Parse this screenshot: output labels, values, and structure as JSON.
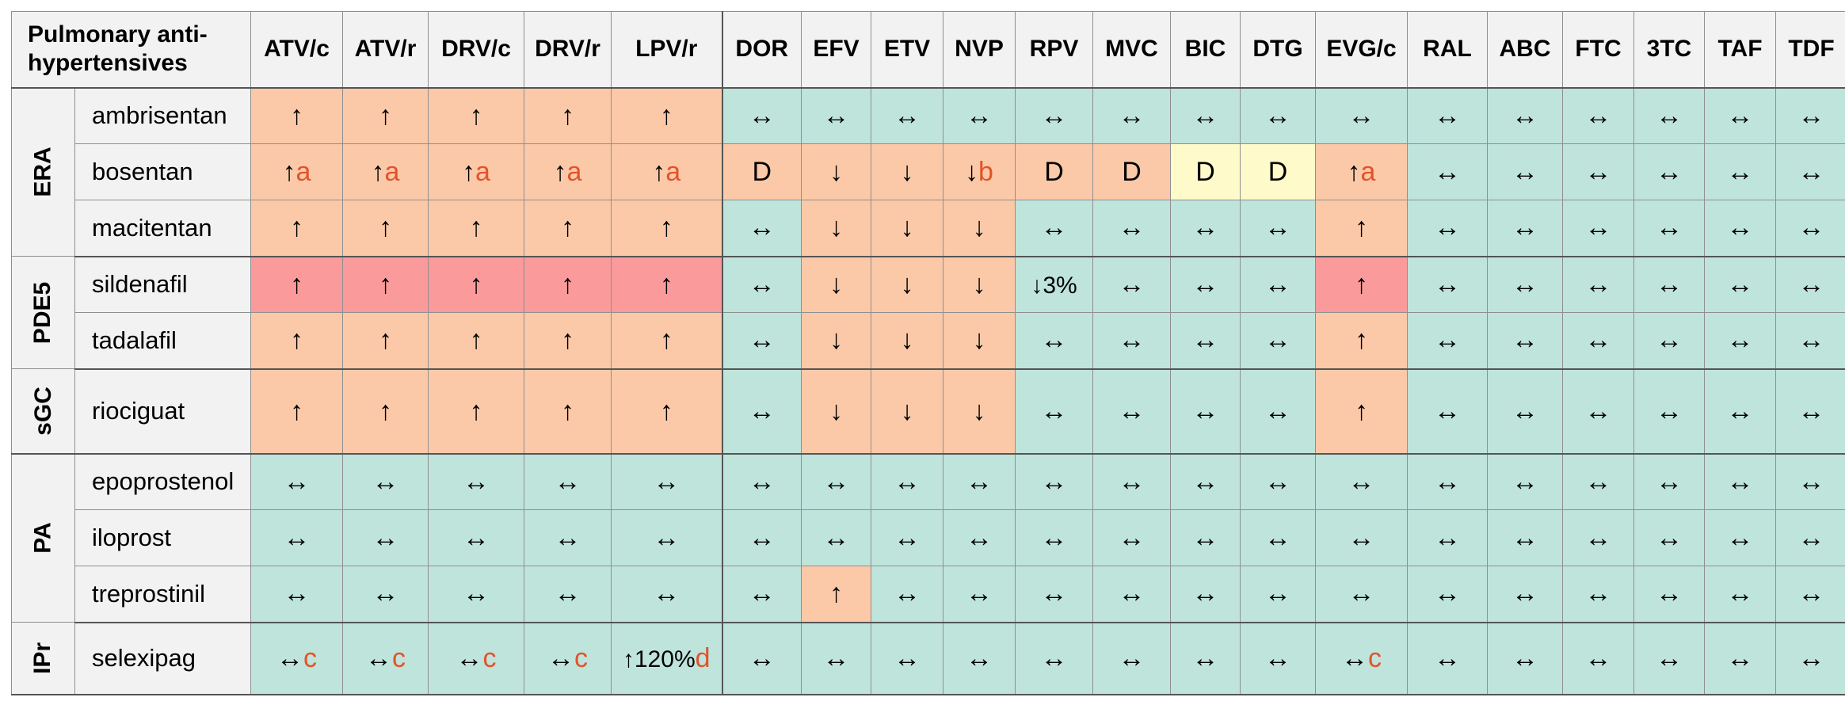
{
  "header": {
    "corner": "Pulmonary anti-hypertensives",
    "columns": [
      "ATV/c",
      "ATV/r",
      "DRV/c",
      "DRV/r",
      "LPV/r",
      "DOR",
      "EFV",
      "ETV",
      "NVP",
      "RPV",
      "MVC",
      "BIC",
      "DTG",
      "EVG/c",
      "RAL",
      "ABC",
      "FTC",
      "3TC",
      "TAF",
      "TDF"
    ]
  },
  "groups": [
    {
      "label": "ERA",
      "drugs": [
        {
          "name": "ambrisentan",
          "cells": [
            [
              "↑",
              "",
              "o"
            ],
            [
              "↑",
              "",
              "o"
            ],
            [
              "↑",
              "",
              "o"
            ],
            [
              "↑",
              "",
              "o"
            ],
            [
              "↑",
              "",
              "o"
            ],
            [
              "↔",
              "",
              "g"
            ],
            [
              "↔",
              "",
              "g"
            ],
            [
              "↔",
              "",
              "g"
            ],
            [
              "↔",
              "",
              "g"
            ],
            [
              "↔",
              "",
              "g"
            ],
            [
              "↔",
              "",
              "g"
            ],
            [
              "↔",
              "",
              "g"
            ],
            [
              "↔",
              "",
              "g"
            ],
            [
              "↔",
              "",
              "g"
            ],
            [
              "↔",
              "",
              "g"
            ],
            [
              "↔",
              "",
              "g"
            ],
            [
              "↔",
              "",
              "g"
            ],
            [
              "↔",
              "",
              "g"
            ],
            [
              "↔",
              "",
              "g"
            ],
            [
              "↔",
              "",
              "g"
            ]
          ]
        },
        {
          "name": "bosentan",
          "cells": [
            [
              "↑",
              "a",
              "o"
            ],
            [
              "↑",
              "a",
              "o"
            ],
            [
              "↑",
              "a",
              "o"
            ],
            [
              "↑",
              "a",
              "o"
            ],
            [
              "↑",
              "a",
              "o"
            ],
            [
              "D",
              "",
              "o"
            ],
            [
              "↓",
              "",
              "o"
            ],
            [
              "↓",
              "",
              "o"
            ],
            [
              "↓",
              "b",
              "o"
            ],
            [
              "D",
              "",
              "o"
            ],
            [
              "D",
              "",
              "o"
            ],
            [
              "D",
              "",
              "y"
            ],
            [
              "D",
              "",
              "y"
            ],
            [
              "↑",
              "a",
              "o"
            ],
            [
              "↔",
              "",
              "g"
            ],
            [
              "↔",
              "",
              "g"
            ],
            [
              "↔",
              "",
              "g"
            ],
            [
              "↔",
              "",
              "g"
            ],
            [
              "↔",
              "",
              "g"
            ],
            [
              "↔",
              "",
              "g"
            ]
          ]
        },
        {
          "name": "macitentan",
          "cells": [
            [
              "↑",
              "",
              "o"
            ],
            [
              "↑",
              "",
              "o"
            ],
            [
              "↑",
              "",
              "o"
            ],
            [
              "↑",
              "",
              "o"
            ],
            [
              "↑",
              "",
              "o"
            ],
            [
              "↔",
              "",
              "g"
            ],
            [
              "↓",
              "",
              "o"
            ],
            [
              "↓",
              "",
              "o"
            ],
            [
              "↓",
              "",
              "o"
            ],
            [
              "↔",
              "",
              "g"
            ],
            [
              "↔",
              "",
              "g"
            ],
            [
              "↔",
              "",
              "g"
            ],
            [
              "↔",
              "",
              "g"
            ],
            [
              "↑",
              "",
              "o"
            ],
            [
              "↔",
              "",
              "g"
            ],
            [
              "↔",
              "",
              "g"
            ],
            [
              "↔",
              "",
              "g"
            ],
            [
              "↔",
              "",
              "g"
            ],
            [
              "↔",
              "",
              "g"
            ],
            [
              "↔",
              "",
              "g"
            ]
          ]
        }
      ]
    },
    {
      "label": "PDE5",
      "drugs": [
        {
          "name": "sildenafil",
          "cells": [
            [
              "↑",
              "",
              "r"
            ],
            [
              "↑",
              "",
              "r"
            ],
            [
              "↑",
              "",
              "r"
            ],
            [
              "↑",
              "",
              "r"
            ],
            [
              "↑",
              "",
              "r"
            ],
            [
              "↔",
              "",
              "g"
            ],
            [
              "↓",
              "",
              "o"
            ],
            [
              "↓",
              "",
              "o"
            ],
            [
              "↓",
              "",
              "o"
            ],
            [
              "↓3%",
              "",
              "g"
            ],
            [
              "↔",
              "",
              "g"
            ],
            [
              "↔",
              "",
              "g"
            ],
            [
              "↔",
              "",
              "g"
            ],
            [
              "↑",
              "",
              "r"
            ],
            [
              "↔",
              "",
              "g"
            ],
            [
              "↔",
              "",
              "g"
            ],
            [
              "↔",
              "",
              "g"
            ],
            [
              "↔",
              "",
              "g"
            ],
            [
              "↔",
              "",
              "g"
            ],
            [
              "↔",
              "",
              "g"
            ]
          ]
        },
        {
          "name": "tadalafil",
          "cells": [
            [
              "↑",
              "",
              "o"
            ],
            [
              "↑",
              "",
              "o"
            ],
            [
              "↑",
              "",
              "o"
            ],
            [
              "↑",
              "",
              "o"
            ],
            [
              "↑",
              "",
              "o"
            ],
            [
              "↔",
              "",
              "g"
            ],
            [
              "↓",
              "",
              "o"
            ],
            [
              "↓",
              "",
              "o"
            ],
            [
              "↓",
              "",
              "o"
            ],
            [
              "↔",
              "",
              "g"
            ],
            [
              "↔",
              "",
              "g"
            ],
            [
              "↔",
              "",
              "g"
            ],
            [
              "↔",
              "",
              "g"
            ],
            [
              "↑",
              "",
              "o"
            ],
            [
              "↔",
              "",
              "g"
            ],
            [
              "↔",
              "",
              "g"
            ],
            [
              "↔",
              "",
              "g"
            ],
            [
              "↔",
              "",
              "g"
            ],
            [
              "↔",
              "",
              "g"
            ],
            [
              "↔",
              "",
              "g"
            ]
          ]
        }
      ]
    },
    {
      "label": "sGC",
      "drugs": [
        {
          "name": "riociguat",
          "cells": [
            [
              "↑",
              "",
              "o"
            ],
            [
              "↑",
              "",
              "o"
            ],
            [
              "↑",
              "",
              "o"
            ],
            [
              "↑",
              "",
              "o"
            ],
            [
              "↑",
              "",
              "o"
            ],
            [
              "↔",
              "",
              "g"
            ],
            [
              "↓",
              "",
              "o"
            ],
            [
              "↓",
              "",
              "o"
            ],
            [
              "↓",
              "",
              "o"
            ],
            [
              "↔",
              "",
              "g"
            ],
            [
              "↔",
              "",
              "g"
            ],
            [
              "↔",
              "",
              "g"
            ],
            [
              "↔",
              "",
              "g"
            ],
            [
              "↑",
              "",
              "o"
            ],
            [
              "↔",
              "",
              "g"
            ],
            [
              "↔",
              "",
              "g"
            ],
            [
              "↔",
              "",
              "g"
            ],
            [
              "↔",
              "",
              "g"
            ],
            [
              "↔",
              "",
              "g"
            ],
            [
              "↔",
              "",
              "g"
            ]
          ]
        }
      ]
    },
    {
      "label": "PA",
      "drugs": [
        {
          "name": "epoprostenol",
          "cells": [
            [
              "↔",
              "",
              "g"
            ],
            [
              "↔",
              "",
              "g"
            ],
            [
              "↔",
              "",
              "g"
            ],
            [
              "↔",
              "",
              "g"
            ],
            [
              "↔",
              "",
              "g"
            ],
            [
              "↔",
              "",
              "g"
            ],
            [
              "↔",
              "",
              "g"
            ],
            [
              "↔",
              "",
              "g"
            ],
            [
              "↔",
              "",
              "g"
            ],
            [
              "↔",
              "",
              "g"
            ],
            [
              "↔",
              "",
              "g"
            ],
            [
              "↔",
              "",
              "g"
            ],
            [
              "↔",
              "",
              "g"
            ],
            [
              "↔",
              "",
              "g"
            ],
            [
              "↔",
              "",
              "g"
            ],
            [
              "↔",
              "",
              "g"
            ],
            [
              "↔",
              "",
              "g"
            ],
            [
              "↔",
              "",
              "g"
            ],
            [
              "↔",
              "",
              "g"
            ],
            [
              "↔",
              "",
              "g"
            ]
          ]
        },
        {
          "name": "iloprost",
          "cells": [
            [
              "↔",
              "",
              "g"
            ],
            [
              "↔",
              "",
              "g"
            ],
            [
              "↔",
              "",
              "g"
            ],
            [
              "↔",
              "",
              "g"
            ],
            [
              "↔",
              "",
              "g"
            ],
            [
              "↔",
              "",
              "g"
            ],
            [
              "↔",
              "",
              "g"
            ],
            [
              "↔",
              "",
              "g"
            ],
            [
              "↔",
              "",
              "g"
            ],
            [
              "↔",
              "",
              "g"
            ],
            [
              "↔",
              "",
              "g"
            ],
            [
              "↔",
              "",
              "g"
            ],
            [
              "↔",
              "",
              "g"
            ],
            [
              "↔",
              "",
              "g"
            ],
            [
              "↔",
              "",
              "g"
            ],
            [
              "↔",
              "",
              "g"
            ],
            [
              "↔",
              "",
              "g"
            ],
            [
              "↔",
              "",
              "g"
            ],
            [
              "↔",
              "",
              "g"
            ],
            [
              "↔",
              "",
              "g"
            ]
          ]
        },
        {
          "name": "treprostinil",
          "cells": [
            [
              "↔",
              "",
              "g"
            ],
            [
              "↔",
              "",
              "g"
            ],
            [
              "↔",
              "",
              "g"
            ],
            [
              "↔",
              "",
              "g"
            ],
            [
              "↔",
              "",
              "g"
            ],
            [
              "↔",
              "",
              "g"
            ],
            [
              "↑",
              "",
              "o"
            ],
            [
              "↔",
              "",
              "g"
            ],
            [
              "↔",
              "",
              "g"
            ],
            [
              "↔",
              "",
              "g"
            ],
            [
              "↔",
              "",
              "g"
            ],
            [
              "↔",
              "",
              "g"
            ],
            [
              "↔",
              "",
              "g"
            ],
            [
              "↔",
              "",
              "g"
            ],
            [
              "↔",
              "",
              "g"
            ],
            [
              "↔",
              "",
              "g"
            ],
            [
              "↔",
              "",
              "g"
            ],
            [
              "↔",
              "",
              "g"
            ],
            [
              "↔",
              "",
              "g"
            ],
            [
              "↔",
              "",
              "g"
            ]
          ]
        }
      ]
    },
    {
      "label": "IPr",
      "drugs": [
        {
          "name": "selexipag",
          "cells": [
            [
              "↔",
              "c",
              "g"
            ],
            [
              "↔",
              "c",
              "g"
            ],
            [
              "↔",
              "c",
              "g"
            ],
            [
              "↔",
              "c",
              "g"
            ],
            [
              "↑120%",
              "d",
              "g"
            ],
            [
              "↔",
              "",
              "g"
            ],
            [
              "↔",
              "",
              "g"
            ],
            [
              "↔",
              "",
              "g"
            ],
            [
              "↔",
              "",
              "g"
            ],
            [
              "↔",
              "",
              "g"
            ],
            [
              "↔",
              "",
              "g"
            ],
            [
              "↔",
              "",
              "g"
            ],
            [
              "↔",
              "",
              "g"
            ],
            [
              "↔",
              "c",
              "g"
            ],
            [
              "↔",
              "",
              "g"
            ],
            [
              "↔",
              "",
              "g"
            ],
            [
              "↔",
              "",
              "g"
            ],
            [
              "↔",
              "",
              "g"
            ],
            [
              "↔",
              "",
              "g"
            ],
            [
              "↔",
              "",
              "g"
            ]
          ]
        }
      ]
    }
  ],
  "colors": {
    "green": "#bfe4dc",
    "orange": "#fbc9a8",
    "red": "#fa9a9b",
    "yellow": "#fefac9",
    "footnote": "#e2532b"
  }
}
